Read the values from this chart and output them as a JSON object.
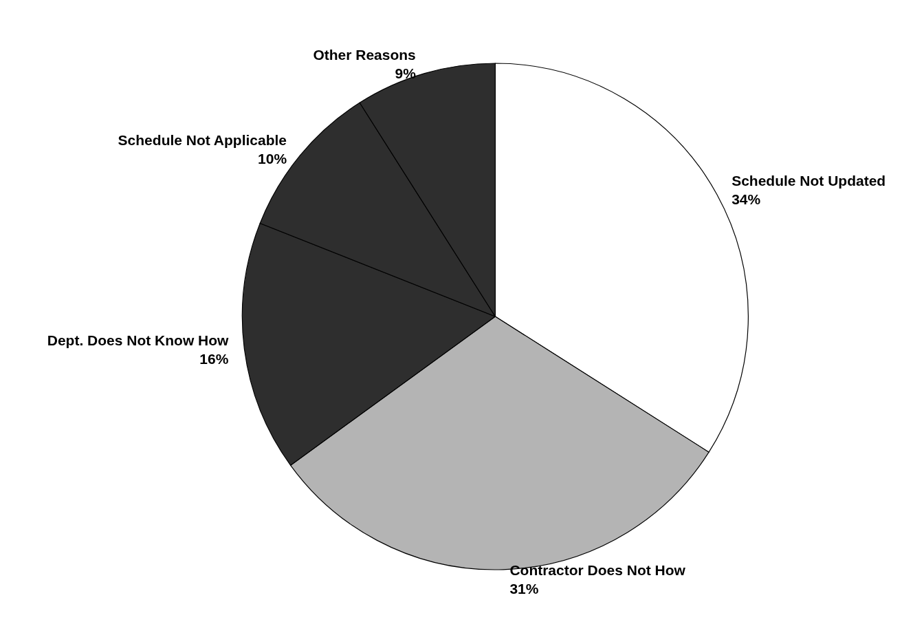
{
  "chart_data": {
    "type": "pie",
    "categories": [
      "Schedule Not Updated",
      "Contractor Does Not How",
      "Dept. Does Not Know How",
      "Schedule Not Applicable",
      "Other Reasons"
    ],
    "values": [
      34,
      31,
      16,
      10,
      9
    ],
    "value_labels": [
      "34%",
      "31%",
      "16%",
      "10%",
      "9%"
    ],
    "colors": [
      "#ffffff",
      "#b4b4b4",
      "#2e2e2e",
      "#2e2e2e",
      "#2e2e2e"
    ],
    "legend": false
  }
}
